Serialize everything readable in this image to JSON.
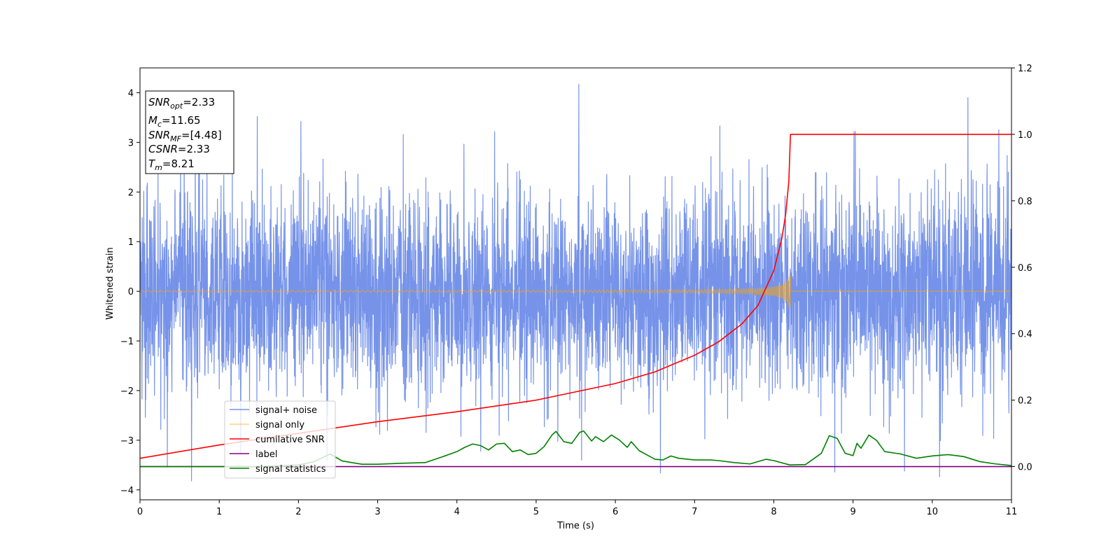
{
  "chart_data": {
    "type": "line",
    "title": "",
    "xlabel": "Time (s)",
    "ylabel": "Whitened strain",
    "xlim": [
      0,
      11
    ],
    "ylim": [
      -4.2,
      4.5
    ],
    "y2lim": [
      -0.1,
      1.2
    ],
    "grid": false,
    "legend_position": "lower-left",
    "x_ticks": [
      "0",
      "1",
      "2",
      "3",
      "4",
      "5",
      "6",
      "7",
      "8",
      "9",
      "10",
      "11"
    ],
    "y_ticks": [
      "−4",
      "−3",
      "−2",
      "−1",
      "0",
      "1",
      "2",
      "3",
      "4"
    ],
    "y2_ticks": [
      "0.0",
      "0.2",
      "0.4",
      "0.6",
      "0.8",
      "1.0",
      "1.2"
    ],
    "info_box": {
      "snr_opt": {
        "main": "SNR",
        "sub": "opt",
        "value": "=2.33"
      },
      "mc": {
        "main": "M",
        "sub": "c",
        "value": "=11.65"
      },
      "snr_mf": {
        "main": "SNR",
        "sub": "MF",
        "value": "=[4.48]"
      },
      "csnr": {
        "main": "CSNR",
        "value": "=2.33"
      },
      "tm": {
        "main": "T",
        "sub": "m",
        "value": "=8.21"
      }
    },
    "series": [
      {
        "name": "signal+ noise",
        "axis": "left",
        "color": "#4169e1",
        "opacity": 0.72,
        "kind": "noise",
        "noise_sigma": 1.0,
        "noise_clip": [
          -3.85,
          4.2
        ],
        "spikes": [
          [
            0.65,
            -3.82
          ],
          [
            1.48,
            3.52
          ],
          [
            2.03,
            3.42
          ],
          [
            5.54,
            4.17
          ],
          [
            6.57,
            -3.66
          ],
          [
            7.32,
            3.33
          ],
          [
            8.77,
            -3.64
          ],
          [
            9.03,
            3.22
          ],
          [
            9.65,
            -3.62
          ],
          [
            10.45,
            3.9
          ],
          [
            1.27,
            -3.28
          ],
          [
            4.3,
            -3.22
          ],
          [
            10.84,
            3.25
          ],
          [
            2.36,
            -3.4
          ]
        ]
      },
      {
        "name": "signal only",
        "axis": "left",
        "color": "#ffa500",
        "opacity": 0.5,
        "kind": "chirp",
        "t_merge": 8.21,
        "base_amp": 0.012,
        "peak_amp": 0.42
      },
      {
        "name": "cumilative SNR",
        "axis": "right",
        "color": "#ff0000",
        "x": [
          0,
          1,
          2,
          3,
          4,
          5,
          6,
          6.5,
          7,
          7.3,
          7.6,
          7.8,
          8.0,
          8.1,
          8.15,
          8.19,
          8.21,
          8.22,
          11
        ],
        "y": [
          0.025,
          0.065,
          0.1,
          0.135,
          0.165,
          0.2,
          0.25,
          0.285,
          0.335,
          0.375,
          0.43,
          0.485,
          0.59,
          0.685,
          0.76,
          0.86,
          1.0,
          1.0,
          1.0
        ]
      },
      {
        "name": "label",
        "axis": "right",
        "color": "#800080",
        "x": [
          0,
          11
        ],
        "y": [
          0.0,
          0.0
        ]
      },
      {
        "name": "signal statistics",
        "axis": "right",
        "color": "#008000",
        "x": [
          0,
          0.5,
          1,
          1.5,
          2,
          2.2,
          2.4,
          2.55,
          2.8,
          3.0,
          3.3,
          3.6,
          3.8,
          4.0,
          4.1,
          4.2,
          4.3,
          4.4,
          4.5,
          4.6,
          4.7,
          4.8,
          4.9,
          5.0,
          5.1,
          5.2,
          5.25,
          5.35,
          5.45,
          5.55,
          5.6,
          5.7,
          5.75,
          5.85,
          5.95,
          6.05,
          6.15,
          6.2,
          6.3,
          6.4,
          6.5,
          6.6,
          6.7,
          6.8,
          7.0,
          7.2,
          7.3,
          7.5,
          7.7,
          7.9,
          8.0,
          8.2,
          8.4,
          8.6,
          8.7,
          8.8,
          8.9,
          9.0,
          9.05,
          9.1,
          9.2,
          9.3,
          9.4,
          9.6,
          9.8,
          10.0,
          10.2,
          10.4,
          10.6,
          10.8,
          11
        ],
        "y": [
          0.0,
          0.0,
          0.0,
          0.0,
          0.005,
          0.015,
          0.038,
          0.017,
          0.007,
          0.007,
          0.01,
          0.012,
          0.028,
          0.045,
          0.058,
          0.068,
          0.063,
          0.05,
          0.068,
          0.07,
          0.045,
          0.05,
          0.036,
          0.04,
          0.06,
          0.095,
          0.106,
          0.075,
          0.07,
          0.103,
          0.107,
          0.077,
          0.09,
          0.075,
          0.095,
          0.08,
          0.058,
          0.075,
          0.048,
          0.035,
          0.022,
          0.02,
          0.032,
          0.025,
          0.02,
          0.02,
          0.018,
          0.012,
          0.008,
          0.022,
          0.018,
          0.005,
          0.006,
          0.04,
          0.093,
          0.085,
          0.04,
          0.033,
          0.07,
          0.055,
          0.095,
          0.078,
          0.045,
          0.038,
          0.025,
          0.032,
          0.036,
          0.03,
          0.015,
          0.008,
          0.003
        ]
      }
    ]
  }
}
